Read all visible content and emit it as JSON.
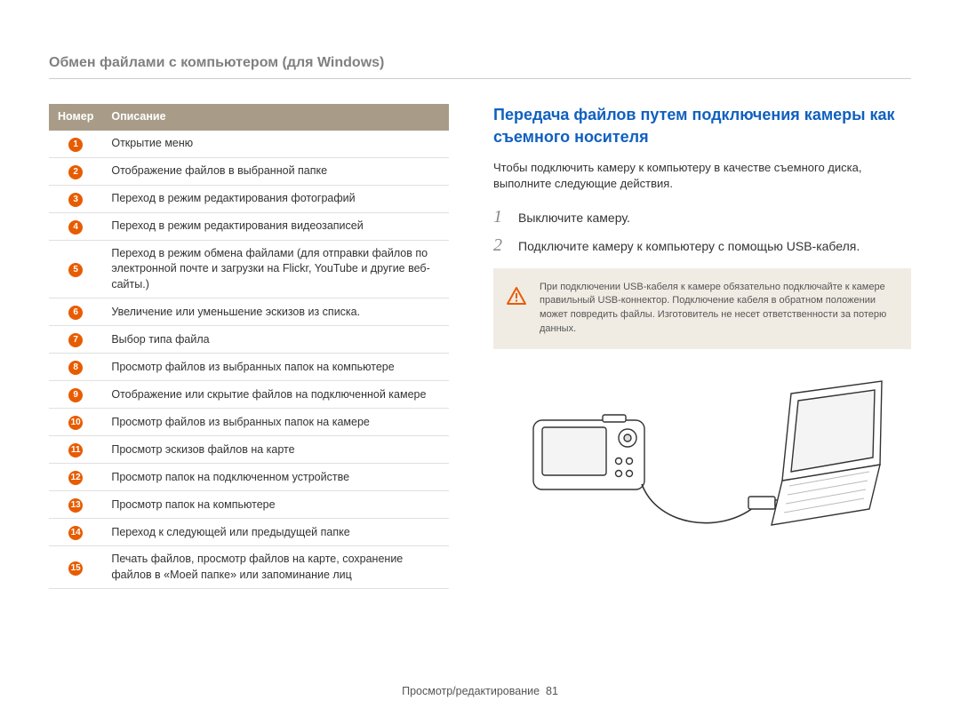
{
  "page_title": "Обмен файлами с компьютером (для Windows)",
  "table": {
    "header_num": "Номер",
    "header_desc": "Описание",
    "rows": [
      {
        "n": "1",
        "desc": "Открытие меню"
      },
      {
        "n": "2",
        "desc": "Отображение файлов в выбранной папке"
      },
      {
        "n": "3",
        "desc": "Переход в режим редактирования фотографий"
      },
      {
        "n": "4",
        "desc": "Переход в режим редактирования видеозаписей"
      },
      {
        "n": "5",
        "desc": "Переход в режим обмена файлами (для отправки файлов по электронной почте и загрузки на Flickr, YouTube и другие веб-сайты.)"
      },
      {
        "n": "6",
        "desc": "Увеличение или уменьшение эскизов из списка."
      },
      {
        "n": "7",
        "desc": "Выбор типа файла"
      },
      {
        "n": "8",
        "desc": "Просмотр файлов из выбранных папок на компьютере"
      },
      {
        "n": "9",
        "desc": "Отображение или скрытие файлов на подключенной камере"
      },
      {
        "n": "10",
        "desc": "Просмотр файлов из выбранных папок на камере"
      },
      {
        "n": "11",
        "desc": "Просмотр эскизов файлов на карте"
      },
      {
        "n": "12",
        "desc": "Просмотр папок на подключенном устройстве"
      },
      {
        "n": "13",
        "desc": "Просмотр папок на компьютере"
      },
      {
        "n": "14",
        "desc": "Переход к следующей или предыдущей папке"
      },
      {
        "n": "15",
        "desc": "Печать файлов, просмотр файлов на карте, сохранение файлов в «Моей папке» или запоминание лиц"
      }
    ]
  },
  "right": {
    "heading": "Передача файлов путем подключения камеры как съемного носителя",
    "intro": "Чтобы подключить камеру к компьютеру в качестве съемного диска, выполните следующие действия.",
    "steps": [
      {
        "n": "1",
        "text": "Выключите камеру."
      },
      {
        "n": "2",
        "text": "Подключите камеру к компьютеру с помощью USB-кабеля."
      }
    ],
    "warning": "При подключении USB-кабеля к камере обязательно подключайте к камере правильный USB-коннектор. Подключение кабеля в обратном положении может повредить файлы. Изготовитель не несет ответственности за потерю данных."
  },
  "footer": {
    "label": "Просмотр/редактирование",
    "page": "81"
  },
  "colors": {
    "accent_orange": "#e85c00",
    "table_header_bg": "#a89c88",
    "heading_blue": "#1060c0",
    "warning_bg": "#f0ece4"
  }
}
